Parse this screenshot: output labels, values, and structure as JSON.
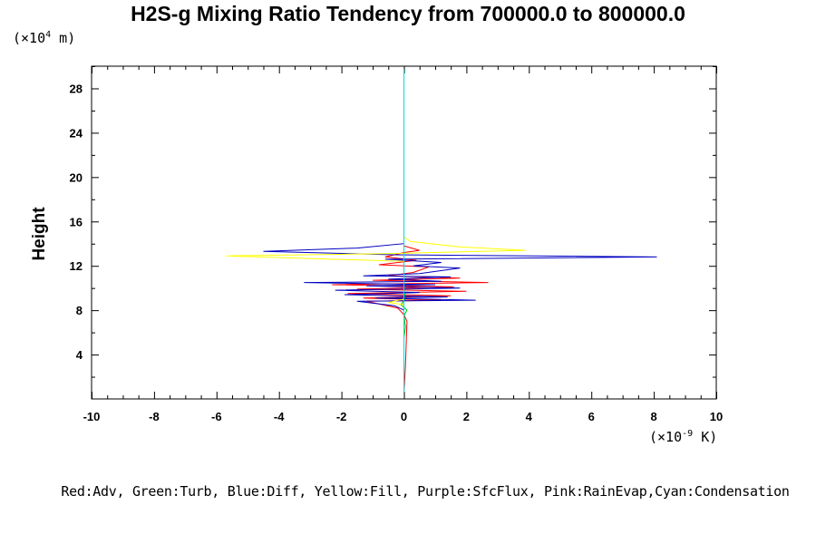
{
  "chart_data": {
    "type": "line",
    "title": "H2S-g Mixing Ratio Tendency from 700000.0 to 800000.0",
    "xlabel": "",
    "ylabel": "Height",
    "x_unit_prefix": "(×10",
    "x_unit_exp": "-9",
    "x_unit_suffix": " K)",
    "y_unit_prefix": "(×10",
    "y_unit_exp": "4",
    "y_unit_suffix": " m)",
    "xlim": [
      -10,
      10
    ],
    "ylim": [
      0,
      30
    ],
    "x_ticks": [
      -10,
      -8,
      -6,
      -4,
      -2,
      0,
      2,
      4,
      6,
      8,
      10
    ],
    "y_ticks": [
      4,
      8,
      12,
      16,
      20,
      24,
      28
    ],
    "legend_text": "Red:Adv, Green:Turb, Blue:Diff, Yellow:Fill, Purple:SfcFlux, Pink:RainEvap,Cyan:Condensation",
    "series": [
      {
        "color": "#ff0000",
        "points": [
          [
            0,
            0.6
          ],
          [
            0.05,
            3
          ],
          [
            0.1,
            7
          ],
          [
            0,
            7.6
          ],
          [
            -0.2,
            8.2
          ],
          [
            -1.2,
            8.8
          ],
          [
            1.2,
            8.9
          ],
          [
            -1.3,
            9.1
          ],
          [
            1.5,
            9.3
          ],
          [
            -1.8,
            9.5
          ],
          [
            2.0,
            9.7
          ],
          [
            -1.5,
            9.9
          ],
          [
            1.6,
            10.1
          ],
          [
            -2.3,
            10.3
          ],
          [
            2.7,
            10.5
          ],
          [
            -1.0,
            10.7
          ],
          [
            1.8,
            10.9
          ],
          [
            -0.5,
            11.1
          ],
          [
            0.3,
            11.4
          ],
          [
            0.8,
            11.9
          ],
          [
            -0.8,
            12.1
          ],
          [
            0.4,
            12.5
          ],
          [
            -0.6,
            12.8
          ],
          [
            0,
            13.2
          ],
          [
            0.5,
            13.4
          ],
          [
            0,
            13.8
          ],
          [
            0,
            29.7
          ]
        ]
      },
      {
        "color": "#00c000",
        "points": [
          [
            0,
            0.6
          ],
          [
            0,
            5.5
          ],
          [
            0.05,
            6.5
          ],
          [
            0,
            7.5
          ],
          [
            0.1,
            8.0
          ],
          [
            -0.1,
            8.5
          ],
          [
            0.05,
            9.0
          ],
          [
            0,
            9.8
          ],
          [
            0,
            29.7
          ]
        ]
      },
      {
        "color": "#0000c0",
        "points": [
          [
            0,
            0.6
          ],
          [
            0,
            8.0
          ],
          [
            -0.3,
            8.4
          ],
          [
            -1.5,
            8.8
          ],
          [
            2.3,
            8.9
          ],
          [
            -0.9,
            9.1
          ],
          [
            1.4,
            9.2
          ],
          [
            -1.9,
            9.4
          ],
          [
            0.5,
            9.6
          ],
          [
            -2.2,
            9.8
          ],
          [
            1.8,
            10.0
          ],
          [
            -1.2,
            10.2
          ],
          [
            1.0,
            10.3
          ],
          [
            -3.2,
            10.5
          ],
          [
            1.2,
            10.6
          ],
          [
            -0.5,
            10.8
          ],
          [
            1.5,
            11.0
          ],
          [
            -1.3,
            11.1
          ],
          [
            0.5,
            11.3
          ],
          [
            1.8,
            11.8
          ],
          [
            0.3,
            12.0
          ],
          [
            1.2,
            12.3
          ],
          [
            -0.6,
            12.6
          ],
          [
            8.1,
            12.8
          ],
          [
            -0.3,
            13.0
          ],
          [
            -4.5,
            13.3
          ],
          [
            -1.5,
            13.6
          ],
          [
            0,
            14.0
          ],
          [
            0,
            14.4
          ],
          [
            0,
            29.7
          ]
        ]
      },
      {
        "color": "#ffff00",
        "points": [
          [
            0,
            0.6
          ],
          [
            0,
            8.5
          ],
          [
            -0.5,
            8.7
          ],
          [
            0,
            9.0
          ],
          [
            0,
            12.4
          ],
          [
            -5.7,
            12.9
          ],
          [
            -0.5,
            13.1
          ],
          [
            3.9,
            13.4
          ],
          [
            1.8,
            13.7
          ],
          [
            0.2,
            14.2
          ],
          [
            0,
            14.6
          ],
          [
            0,
            29.7
          ]
        ]
      },
      {
        "color": "#00e0e0",
        "points": [
          [
            0,
            0.6
          ],
          [
            0,
            29.7
          ]
        ]
      }
    ]
  }
}
